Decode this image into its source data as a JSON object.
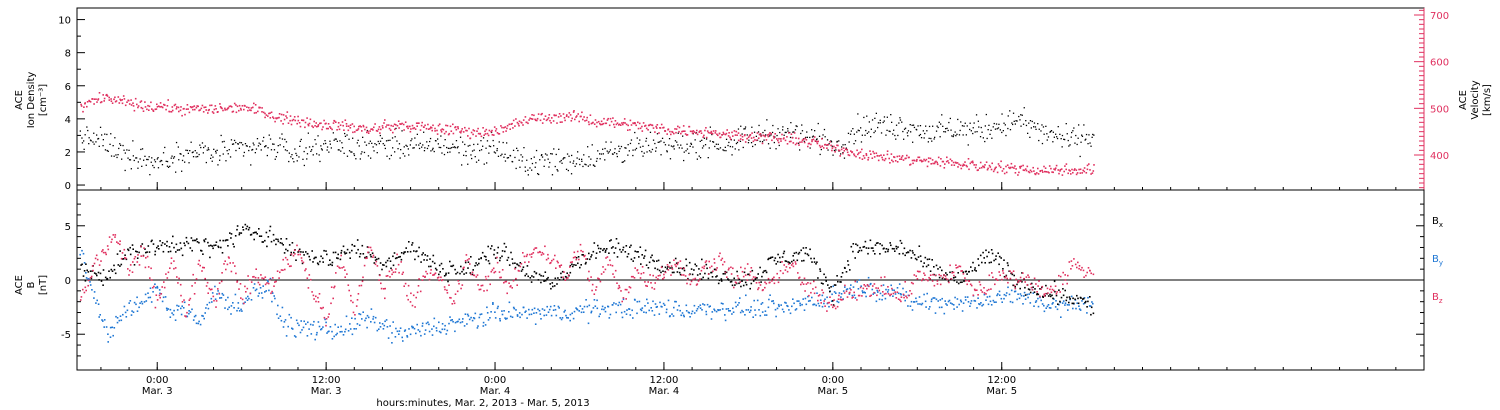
{
  "colors": {
    "black_series": "#000000",
    "pink_series": "#e0305f",
    "blue_series": "#1f77d4",
    "axis": "#000000"
  },
  "x_axis": {
    "range_hours": [
      -5.7,
      90.0
    ],
    "ticks": [
      {
        "time": "0:00",
        "date": "Mar. 3"
      },
      {
        "time": "12:00",
        "date": "Mar. 3"
      },
      {
        "time": "0:00",
        "date": "Mar. 4"
      },
      {
        "time": "12:00",
        "date": "Mar. 4"
      },
      {
        "time": "0:00",
        "date": "Mar. 5"
      },
      {
        "time": "12:00",
        "date": "Mar. 5"
      }
    ],
    "tick_hours": [
      0,
      12,
      24,
      36,
      48,
      60
    ],
    "title": "hours:minutes, Mar.  2, 2013 - Mar.  5, 2013"
  },
  "chart_data": [
    {
      "type": "scatter",
      "panel": "top",
      "left_axis": {
        "label_line1": "ACE",
        "label_line2": "Ion Density",
        "label_units": "[cm⁻³]",
        "range": [
          -0.3,
          10.7
        ],
        "ticks": [
          "0",
          "2",
          "4",
          "6",
          "8",
          "10"
        ],
        "tick_values": [
          0,
          2,
          4,
          6,
          8,
          10
        ]
      },
      "right_axis": {
        "label_line1": "ACE",
        "label_line2": "Velocity",
        "label_units": "[km/s]",
        "range": [
          325,
          715
        ],
        "ticks": [
          "400",
          "500",
          "600",
          "700"
        ],
        "tick_values": [
          400,
          500,
          600,
          700
        ]
      },
      "series": [
        {
          "axis": "left",
          "color": "#000000",
          "points": [
            [
              -5.5,
              2.9
            ],
            [
              -4.0,
              2.7
            ],
            [
              -2.5,
              2.0
            ],
            [
              -1.0,
              1.7
            ],
            [
              0.0,
              1.4
            ],
            [
              2.0,
              2.0
            ],
            [
              4.0,
              1.9
            ],
            [
              6.0,
              2.2
            ],
            [
              8.0,
              2.4
            ],
            [
              10.0,
              2.0
            ],
            [
              12.0,
              2.6
            ],
            [
              14.0,
              2.3
            ],
            [
              16.0,
              2.6
            ],
            [
              18.0,
              2.3
            ],
            [
              20.0,
              2.5
            ],
            [
              22.0,
              2.1
            ],
            [
              24.0,
              2.3
            ],
            [
              25.5,
              1.5
            ],
            [
              27.0,
              1.4
            ],
            [
              29.0,
              1.5
            ],
            [
              31.0,
              1.8
            ],
            [
              33.0,
              2.2
            ],
            [
              35.0,
              2.3
            ],
            [
              37.0,
              2.4
            ],
            [
              39.0,
              2.6
            ],
            [
              41.0,
              2.7
            ],
            [
              43.0,
              3.1
            ],
            [
              45.0,
              3.2
            ],
            [
              47.0,
              2.8
            ],
            [
              48.5,
              2.4
            ],
            [
              49.5,
              3.4
            ],
            [
              51.0,
              3.6
            ],
            [
              53.0,
              3.6
            ],
            [
              55.0,
              3.2
            ],
            [
              57.0,
              3.4
            ],
            [
              59.0,
              3.4
            ],
            [
              61.0,
              4.0
            ],
            [
              63.0,
              3.1
            ],
            [
              65.0,
              2.8
            ],
            [
              66.5,
              3.0
            ]
          ]
        },
        {
          "axis": "right",
          "color": "#e0305f",
          "points": [
            [
              -5.5,
              505
            ],
            [
              -4.0,
              525
            ],
            [
              -2.5,
              515
            ],
            [
              -1.0,
              505
            ],
            [
              0.0,
              505
            ],
            [
              2.0,
              500
            ],
            [
              4.0,
              500
            ],
            [
              6.0,
              505
            ],
            [
              7.5,
              495
            ],
            [
              9.0,
              480
            ],
            [
              11.0,
              470
            ],
            [
              13.0,
              465
            ],
            [
              15.0,
              455
            ],
            [
              17.0,
              465
            ],
            [
              19.0,
              460
            ],
            [
              21.0,
              455
            ],
            [
              23.0,
              450
            ],
            [
              24.5,
              455
            ],
            [
              25.5,
              470
            ],
            [
              27.0,
              480
            ],
            [
              29.0,
              485
            ],
            [
              31.0,
              475
            ],
            [
              33.0,
              470
            ],
            [
              35.0,
              460
            ],
            [
              37.0,
              455
            ],
            [
              39.0,
              450
            ],
            [
              41.0,
              445
            ],
            [
              43.0,
              440
            ],
            [
              45.0,
              435
            ],
            [
              46.5,
              430
            ],
            [
              47.5,
              420
            ],
            [
              49.0,
              410
            ],
            [
              50.0,
              405
            ],
            [
              52.0,
              395
            ],
            [
              54.0,
              390
            ],
            [
              56.0,
              385
            ],
            [
              58.0,
              380
            ],
            [
              60.0,
              375
            ],
            [
              62.0,
              370
            ],
            [
              64.0,
              370
            ],
            [
              66.5,
              370
            ]
          ]
        }
      ]
    },
    {
      "type": "scatter",
      "panel": "bottom",
      "left_axis": {
        "label_line1": "ACE",
        "label_line2": "B",
        "label_units": "[nT]",
        "range": [
          -8.3,
          8.3
        ],
        "ticks": [
          "-5",
          "0",
          "5"
        ],
        "tick_values": [
          -5,
          0,
          5
        ]
      },
      "zero_line": 0,
      "legend": {
        "placement": "right",
        "entries": [
          {
            "base": "B",
            "sub": "x",
            "color": "#000000"
          },
          {
            "base": "B",
            "sub": "y",
            "color": "#1f77d4"
          },
          {
            "base": "B",
            "sub": "z",
            "color": "#e0305f"
          }
        ]
      },
      "series": [
        {
          "name": "Bx",
          "color": "#000000",
          "points": [
            [
              -5.5,
              1.0
            ],
            [
              -4.0,
              0.5
            ],
            [
              -2.0,
              2.5
            ],
            [
              0.0,
              3.0
            ],
            [
              2.0,
              3.5
            ],
            [
              4.0,
              3.0
            ],
            [
              6.0,
              4.5
            ],
            [
              8.0,
              4.3
            ],
            [
              9.0,
              3.0
            ],
            [
              10.0,
              2.5
            ],
            [
              12.0,
              2.0
            ],
            [
              14.0,
              3.0
            ],
            [
              16.0,
              1.5
            ],
            [
              18.0,
              3.0
            ],
            [
              20.0,
              1.0
            ],
            [
              22.0,
              1.0
            ],
            [
              24.0,
              3.0
            ],
            [
              26.0,
              1.0
            ],
            [
              28.0,
              -0.5
            ],
            [
              30.0,
              2.0
            ],
            [
              32.0,
              3.0
            ],
            [
              34.0,
              2.5
            ],
            [
              36.0,
              1.5
            ],
            [
              38.0,
              1.0
            ],
            [
              40.0,
              0.5
            ],
            [
              42.0,
              0.0
            ],
            [
              44.0,
              2.0
            ],
            [
              46.0,
              2.5
            ],
            [
              48.0,
              -1.0
            ],
            [
              49.5,
              3.0
            ],
            [
              53.0,
              3.0
            ],
            [
              55.0,
              1.0
            ],
            [
              57.0,
              0.0
            ],
            [
              59.0,
              2.5
            ],
            [
              61.0,
              0.0
            ],
            [
              63.0,
              -1.0
            ],
            [
              65.0,
              -1.5
            ],
            [
              66.5,
              -2.5
            ]
          ]
        },
        {
          "name": "By",
          "color": "#1f77d4",
          "points": [
            [
              -5.5,
              2.5
            ],
            [
              -4.5,
              -1.5
            ],
            [
              -3.5,
              -5.0
            ],
            [
              -2.5,
              -3.0
            ],
            [
              -1.0,
              -2.0
            ],
            [
              0.0,
              -0.5
            ],
            [
              1.0,
              -3.0
            ],
            [
              2.0,
              -2.5
            ],
            [
              3.0,
              -4.0
            ],
            [
              4.0,
              -1.0
            ],
            [
              5.0,
              -2.0
            ],
            [
              6.0,
              -2.5
            ],
            [
              7.0,
              -0.5
            ],
            [
              8.0,
              -1.0
            ],
            [
              9.0,
              -4.0
            ],
            [
              11.0,
              -4.5
            ],
            [
              13.0,
              -4.5
            ],
            [
              15.0,
              -3.5
            ],
            [
              17.0,
              -5.0
            ],
            [
              19.0,
              -4.5
            ],
            [
              21.0,
              -4.0
            ],
            [
              23.0,
              -3.5
            ],
            [
              24.0,
              -3.0
            ],
            [
              26.0,
              -3.0
            ],
            [
              28.0,
              -3.0
            ],
            [
              30.0,
              -2.8
            ],
            [
              32.0,
              -2.5
            ],
            [
              34.0,
              -2.5
            ],
            [
              36.0,
              -2.5
            ],
            [
              38.0,
              -2.8
            ],
            [
              40.0,
              -2.5
            ],
            [
              42.0,
              -2.5
            ],
            [
              44.0,
              -2.5
            ],
            [
              46.0,
              -2.0
            ],
            [
              48.0,
              -1.5
            ],
            [
              50.0,
              -0.5
            ],
            [
              52.0,
              -1.0
            ],
            [
              54.0,
              -2.0
            ],
            [
              56.0,
              -2.0
            ],
            [
              58.0,
              -2.0
            ],
            [
              60.0,
              -1.5
            ],
            [
              62.0,
              -1.5
            ],
            [
              64.0,
              -2.5
            ],
            [
              66.5,
              -2.0
            ]
          ]
        },
        {
          "name": "Bz",
          "color": "#e0305f",
          "points": [
            [
              -5.5,
              -2.0
            ],
            [
              -4.5,
              1.5
            ],
            [
              -3.0,
              4.0
            ],
            [
              -2.0,
              1.0
            ],
            [
              -1.0,
              2.5
            ],
            [
              0.0,
              -2.0
            ],
            [
              1.0,
              2.0
            ],
            [
              2.0,
              -3.0
            ],
            [
              3.0,
              2.0
            ],
            [
              4.0,
              -2.0
            ],
            [
              5.0,
              2.5
            ],
            [
              6.0,
              -1.5
            ],
            [
              7.0,
              0.5
            ],
            [
              8.0,
              -0.5
            ],
            [
              9.0,
              1.5
            ],
            [
              10.0,
              3.0
            ],
            [
              11.0,
              -1.0
            ],
            [
              12.0,
              -3.5
            ],
            [
              13.0,
              2.0
            ],
            [
              14.0,
              -3.0
            ],
            [
              15.0,
              3.5
            ],
            [
              16.0,
              -1.0
            ],
            [
              17.0,
              2.0
            ],
            [
              18.0,
              -2.0
            ],
            [
              19.0,
              1.0
            ],
            [
              20.0,
              0.0
            ],
            [
              21.0,
              -2.0
            ],
            [
              22.0,
              2.0
            ],
            [
              23.0,
              -1.0
            ],
            [
              24.0,
              1.5
            ],
            [
              25.0,
              -1.0
            ],
            [
              26.0,
              2.0
            ],
            [
              27.0,
              3.0
            ],
            [
              28.0,
              2.0
            ],
            [
              29.0,
              0.5
            ],
            [
              30.0,
              3.0
            ],
            [
              31.0,
              -1.0
            ],
            [
              32.0,
              2.0
            ],
            [
              33.0,
              -1.5
            ],
            [
              34.0,
              1.0
            ],
            [
              35.0,
              0.0
            ],
            [
              36.0,
              1.0
            ],
            [
              37.0,
              1.5
            ],
            [
              38.0,
              -0.5
            ],
            [
              39.0,
              1.5
            ],
            [
              40.0,
              2.0
            ],
            [
              41.0,
              0.0
            ],
            [
              42.0,
              1.0
            ],
            [
              43.0,
              -1.0
            ],
            [
              44.0,
              0.5
            ],
            [
              45.0,
              1.5
            ],
            [
              46.0,
              -0.5
            ],
            [
              47.0,
              -1.5
            ],
            [
              48.0,
              -2.0
            ],
            [
              49.0,
              -1.0
            ],
            [
              50.0,
              -1.0
            ],
            [
              51.0,
              -0.5
            ],
            [
              52.0,
              -1.0
            ],
            [
              53.0,
              -1.5
            ],
            [
              54.0,
              0.5
            ],
            [
              55.0,
              0.0
            ],
            [
              56.0,
              0.5
            ],
            [
              57.0,
              1.0
            ],
            [
              58.0,
              -1.0
            ],
            [
              59.0,
              -0.5
            ],
            [
              60.0,
              1.0
            ],
            [
              61.0,
              0.0
            ],
            [
              62.0,
              0.0
            ],
            [
              63.0,
              -1.0
            ],
            [
              64.0,
              -0.5
            ],
            [
              65.0,
              1.5
            ],
            [
              66.5,
              0.5
            ]
          ]
        }
      ]
    }
  ]
}
